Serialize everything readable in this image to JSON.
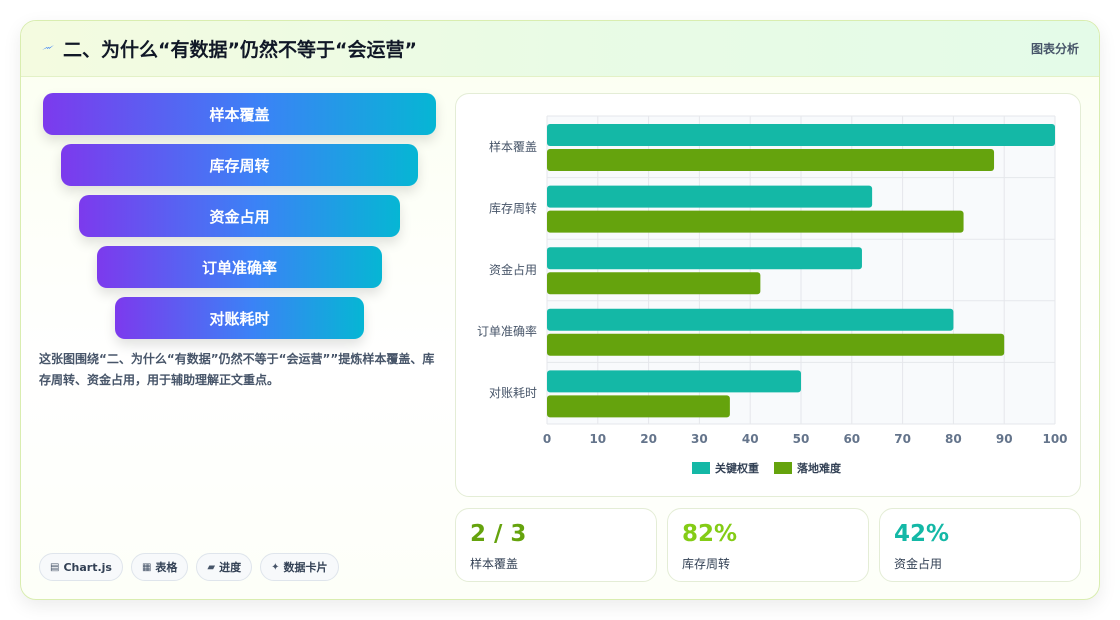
{
  "header": {
    "title": "二、为什么“有数据”仍然不等于“会运营”",
    "tag": "图表分析"
  },
  "funnel": {
    "items": [
      "样本覆盖",
      "库存周转",
      "资金占用",
      "订单准确率",
      "对账耗时"
    ]
  },
  "description": "这张图围绕“二、为什么“有数据”仍然不等于“会运营””提炼样本覆盖、库存周转、资金占用，用于辅助理解正文重点。",
  "chips": [
    {
      "icon": "chart-icon",
      "glyph": "▤",
      "label": "Chart.js"
    },
    {
      "icon": "table-icon",
      "glyph": "▦",
      "label": "表格"
    },
    {
      "icon": "progress-icon",
      "glyph": "▰",
      "label": "进度"
    },
    {
      "icon": "card-icon",
      "glyph": "✦",
      "label": "数据卡片"
    }
  ],
  "stats": [
    {
      "value": "2 / 3",
      "label": "样本覆盖",
      "color": "#65a30d"
    },
    {
      "value": "82%",
      "label": "库存周转",
      "color": "#84cc16"
    },
    {
      "value": "42%",
      "label": "资金占用",
      "color": "#14b8a6"
    }
  ],
  "chart_data": {
    "type": "bar",
    "orientation": "horizontal",
    "categories": [
      "样本覆盖",
      "库存周转",
      "资金占用",
      "订单准确率",
      "对账耗时"
    ],
    "series": [
      {
        "name": "关键权重",
        "values": [
          100,
          64,
          62,
          80,
          50
        ],
        "color": "#14b8a6"
      },
      {
        "name": "落地难度",
        "values": [
          88,
          82,
          42,
          90,
          36
        ],
        "color": "#65a30d"
      }
    ],
    "xlim": [
      0,
      100
    ],
    "xticks": [
      0,
      10,
      20,
      30,
      40,
      50,
      60,
      70,
      80,
      90,
      100
    ],
    "grid": true,
    "legend": "bottom"
  }
}
